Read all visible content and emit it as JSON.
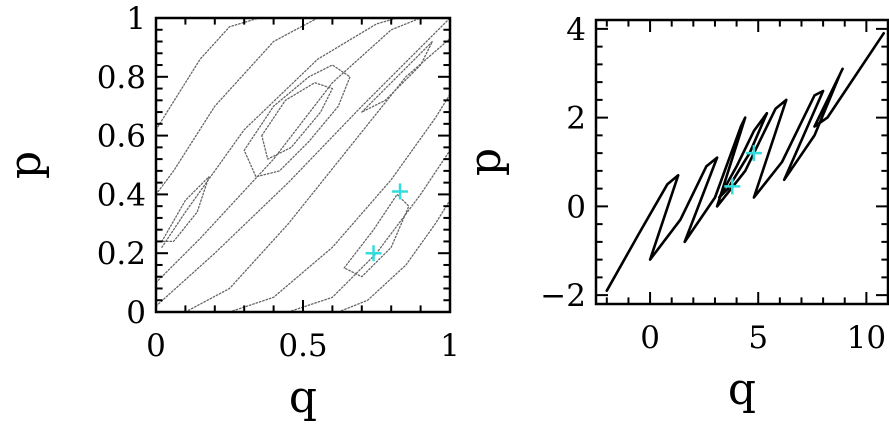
{
  "chart_data": [
    {
      "type": "line",
      "panel": "left",
      "xlabel": "q",
      "ylabel": "p",
      "xlim": [
        0,
        1
      ],
      "ylim": [
        0,
        1
      ],
      "xticks": [
        0,
        0.5,
        1
      ],
      "xtick_labels": [
        "0",
        "0.5",
        "1"
      ],
      "yticks": [
        0,
        0.2,
        0.4,
        0.6,
        0.8,
        1
      ],
      "ytick_labels": [
        "0",
        "0.2",
        "0.4",
        "0.6",
        "0.8",
        "1"
      ],
      "grid": false,
      "legend": "none",
      "line_style": "dotted",
      "line_color": "#666666",
      "series": [
        {
          "x": [
            0.0,
            0.2,
            0.45,
            0.7,
            0.92,
            1.0
          ],
          "y": [
            0.02,
            0.2,
            0.44,
            0.7,
            0.92,
            1.0
          ]
        },
        {
          "x": [
            0.0,
            0.15,
            0.4,
            0.6,
            0.8,
            0.9
          ],
          "y": [
            0.1,
            0.25,
            0.52,
            0.78,
            0.96,
            1.0
          ]
        },
        {
          "x": [
            0.02,
            0.1,
            0.3,
            0.55,
            0.75,
            0.82
          ],
          "y": [
            0.22,
            0.34,
            0.62,
            0.86,
            0.98,
            1.0
          ]
        },
        {
          "x": [
            0.0,
            0.06,
            0.2,
            0.4,
            0.55,
            0.65
          ],
          "y": [
            0.4,
            0.48,
            0.7,
            0.92,
            1.0,
            1.0
          ]
        },
        {
          "x": [
            0.0,
            0.05,
            0.15,
            0.25,
            0.35,
            0.42
          ],
          "y": [
            0.62,
            0.7,
            0.86,
            0.97,
            1.0,
            1.0
          ]
        },
        {
          "x": [
            0.1,
            0.25,
            0.45,
            0.65,
            0.85,
            1.0
          ],
          "y": [
            0.0,
            0.08,
            0.3,
            0.55,
            0.8,
            0.93
          ]
        },
        {
          "x": [
            0.25,
            0.4,
            0.6,
            0.8,
            0.95,
            1.0
          ],
          "y": [
            0.0,
            0.05,
            0.22,
            0.45,
            0.66,
            0.74
          ]
        },
        {
          "x": [
            0.45,
            0.6,
            0.75,
            0.9,
            1.0
          ],
          "y": [
            0.0,
            0.05,
            0.2,
            0.4,
            0.55
          ]
        },
        {
          "x": [
            0.62,
            0.72,
            0.85,
            0.95,
            1.0
          ],
          "y": [
            0.0,
            0.04,
            0.16,
            0.3,
            0.38
          ]
        },
        {
          "x": [
            0.3,
            0.4,
            0.52,
            0.6,
            0.66,
            0.62,
            0.52,
            0.42,
            0.34,
            0.3
          ],
          "y": [
            0.55,
            0.7,
            0.8,
            0.84,
            0.8,
            0.7,
            0.58,
            0.48,
            0.46,
            0.55
          ]
        },
        {
          "x": [
            0.36,
            0.44,
            0.54,
            0.6,
            0.56,
            0.46,
            0.38,
            0.36
          ],
          "y": [
            0.6,
            0.72,
            0.78,
            0.76,
            0.68,
            0.56,
            0.52,
            0.6
          ]
        },
        {
          "x": [
            0.64,
            0.74,
            0.82,
            0.86,
            0.8,
            0.7,
            0.64
          ],
          "y": [
            0.15,
            0.28,
            0.4,
            0.36,
            0.22,
            0.12,
            0.15
          ]
        },
        {
          "x": [
            0.02,
            0.1,
            0.18,
            0.14,
            0.06,
            0.02
          ],
          "y": [
            0.24,
            0.38,
            0.46,
            0.34,
            0.24,
            0.24
          ]
        },
        {
          "x": [
            0.7,
            0.82,
            0.94,
            0.9,
            0.78,
            0.7
          ],
          "y": [
            0.68,
            0.8,
            0.92,
            0.84,
            0.72,
            0.68
          ]
        }
      ],
      "markers": [
        {
          "x": 0.83,
          "y": 0.41,
          "symbol": "+",
          "color": "#33dddd"
        },
        {
          "x": 0.74,
          "y": 0.2,
          "symbol": "+",
          "color": "#33dddd"
        }
      ]
    },
    {
      "type": "line",
      "panel": "right",
      "xlabel": "q",
      "ylabel": "p",
      "xlim": [
        -2.5,
        11
      ],
      "ylim": [
        -2.2,
        4.2
      ],
      "xticks": [
        0,
        5,
        10
      ],
      "xtick_labels": [
        "0",
        "5",
        "10"
      ],
      "yticks": [
        -2,
        0,
        2,
        4
      ],
      "ytick_labels": [
        "−2",
        "0",
        "2",
        "4"
      ],
      "grid": false,
      "legend": "none",
      "line_style": "solid",
      "line_color": "#000000",
      "series": [
        {
          "x": [
            -2.0,
            -0.5,
            0.8,
            1.3,
            0.0,
            1.4,
            2.6,
            3.1,
            1.6,
            3.0,
            4.2,
            4.4,
            3.1,
            4.4,
            5.8,
            6.3,
            4.8,
            6.1,
            7.6,
            8.0,
            6.2,
            7.6,
            8.8,
            8.9,
            7.6,
            8.2,
            10.8
          ],
          "y": [
            -1.9,
            -0.6,
            0.5,
            0.7,
            -1.2,
            -0.3,
            0.9,
            1.1,
            -0.8,
            0.2,
            1.8,
            2.0,
            0.0,
            0.8,
            2.2,
            2.4,
            0.2,
            1.0,
            2.5,
            2.6,
            0.6,
            1.6,
            3.0,
            3.1,
            1.8,
            2.0,
            3.9
          ]
        },
        {
          "x": [
            3.2,
            4.0,
            4.8,
            5.4,
            4.6,
            3.6,
            3.2
          ],
          "y": [
            0.2,
            0.9,
            1.7,
            2.1,
            1.2,
            0.4,
            0.2
          ]
        }
      ],
      "markers": [
        {
          "x": 4.8,
          "y": 1.2,
          "symbol": "+",
          "color": "#33dddd"
        },
        {
          "x": 3.8,
          "y": 0.45,
          "symbol": "+",
          "color": "#33dddd"
        }
      ]
    }
  ]
}
